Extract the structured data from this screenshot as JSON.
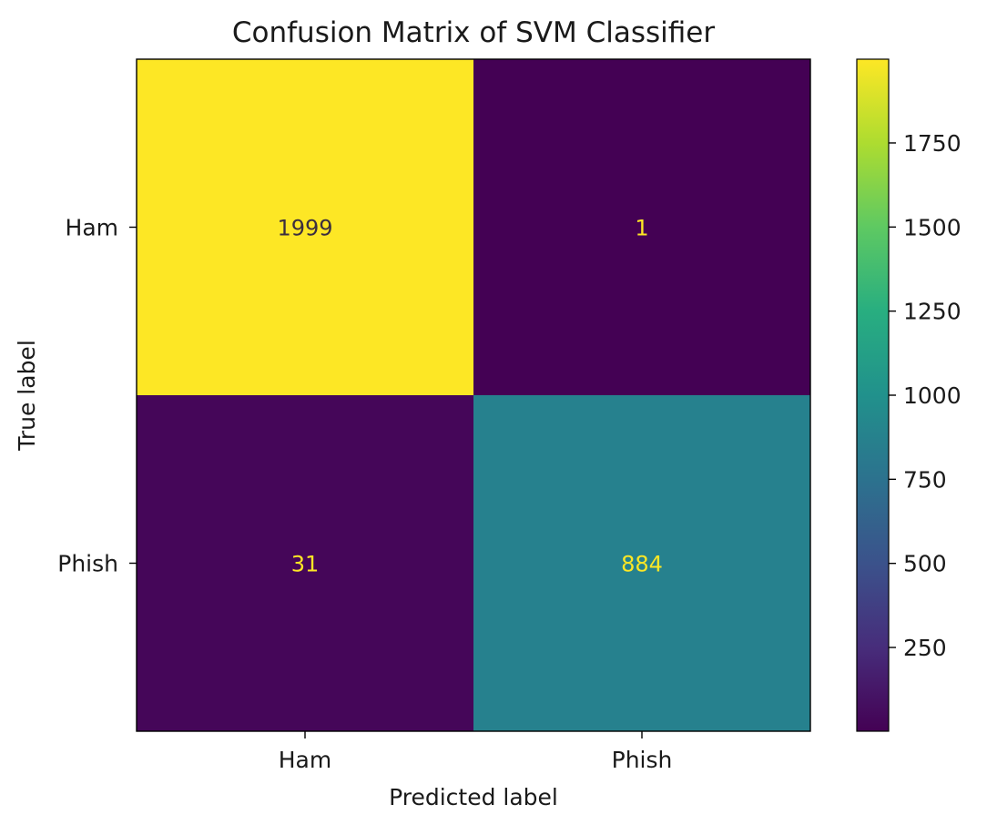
{
  "chart_data": {
    "type": "heatmap",
    "title": "Confusion Matrix of SVM Classifier",
    "xlabel": "Predicted label",
    "ylabel": "True label",
    "x_categories": [
      "Ham",
      "Phish"
    ],
    "y_categories": [
      "Ham",
      "Phish"
    ],
    "values": [
      [
        1999,
        1
      ],
      [
        31,
        884
      ]
    ],
    "colormap": "viridis",
    "colorbar": {
      "min": 1,
      "max": 1999,
      "ticks": [
        250,
        500,
        750,
        1000,
        1250,
        1500,
        1750
      ]
    },
    "colors": {
      "high_value": "#f1e44f",
      "low_value": "#440154",
      "mid_value": "#3b7e8d",
      "label_on_dark": "#fde725",
      "label_on_light": "#3b2e3f"
    }
  }
}
